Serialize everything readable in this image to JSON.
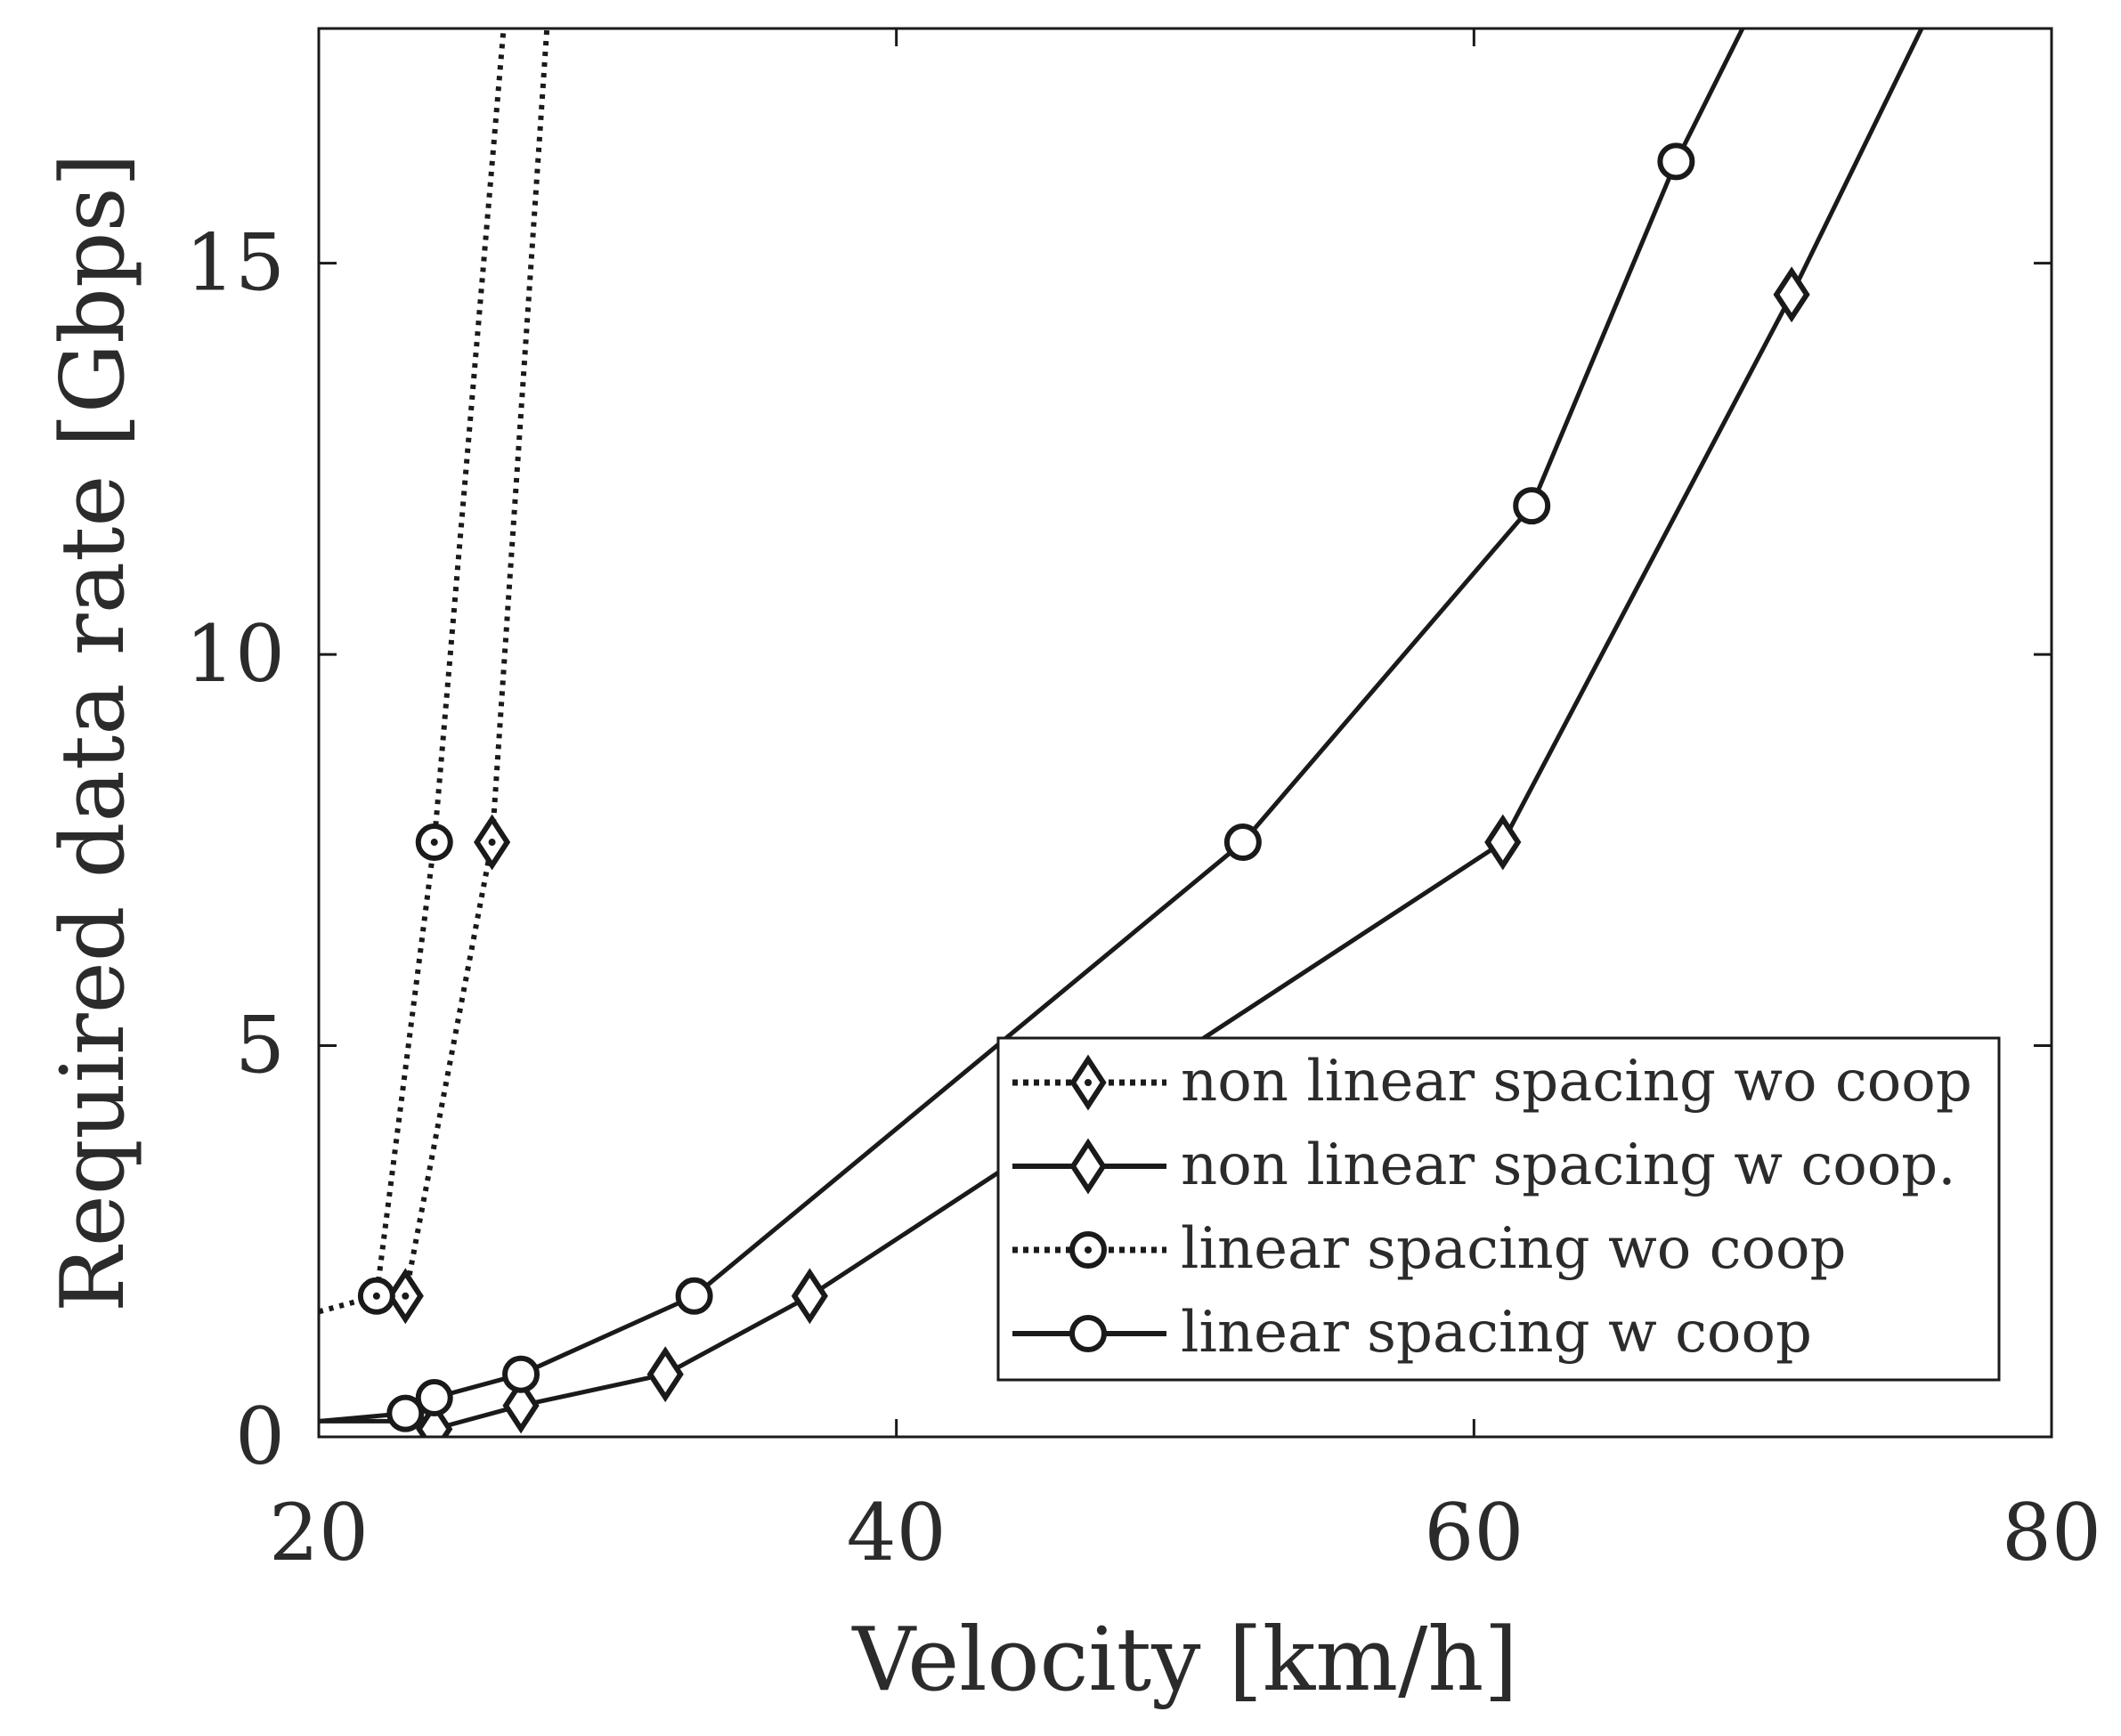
{
  "chart_data": {
    "type": "line",
    "title": "",
    "xlabel": "Velocity [km/h]",
    "ylabel": "Required data rate [Gbps]",
    "xlim": [
      20,
      80
    ],
    "ylim": [
      0,
      18
    ],
    "xticks": [
      20,
      40,
      60,
      80
    ],
    "yticks": [
      0,
      5,
      10,
      15
    ],
    "xtick_labels": [
      "20",
      "40",
      "60",
      "80"
    ],
    "ytick_labels": [
      "0",
      "5",
      "10",
      "15"
    ],
    "grid": false,
    "legend_position": "bottom-right",
    "series": [
      {
        "name": "non linear spacing wo coop",
        "linestyle": "dotted",
        "marker": "diamond",
        "x": [
          23,
          26,
          27.9
        ],
        "y": [
          1.8,
          7.6,
          18
        ],
        "marker_x": [
          23,
          26
        ],
        "marker_y": [
          1.8,
          7.6
        ]
      },
      {
        "name": "non linear spacing w coop.",
        "linestyle": "solid",
        "marker": "diamond",
        "x": [
          20,
          23.5,
          24,
          27,
          32,
          37,
          61,
          71,
          75.5
        ],
        "y": [
          0.2,
          0.2,
          0.1,
          0.4,
          0.8,
          1.8,
          7.6,
          14.6,
          18
        ],
        "marker_x": [
          24,
          27,
          32,
          37,
          61,
          71
        ],
        "marker_y": [
          0.1,
          0.4,
          0.8,
          1.8,
          7.6,
          14.6
        ]
      },
      {
        "name": "linear spacing wo coop",
        "linestyle": "dotted",
        "marker": "circle",
        "x": [
          20,
          22,
          24,
          26.4
        ],
        "y": [
          1.6,
          1.8,
          7.6,
          18
        ],
        "marker_x": [
          22,
          24
        ],
        "marker_y": [
          1.8,
          7.6
        ]
      },
      {
        "name": "linear spacing w coop",
        "linestyle": "solid",
        "marker": "circle",
        "x": [
          20,
          23,
          24,
          27,
          33,
          52,
          62,
          67,
          69.3
        ],
        "y": [
          0.2,
          0.3,
          0.5,
          0.8,
          1.8,
          7.6,
          11.9,
          16.3,
          18
        ],
        "marker_x": [
          23,
          24,
          27,
          33,
          52,
          62,
          67
        ],
        "marker_y": [
          0.3,
          0.5,
          0.8,
          1.8,
          7.6,
          11.9,
          16.3
        ]
      }
    ]
  }
}
